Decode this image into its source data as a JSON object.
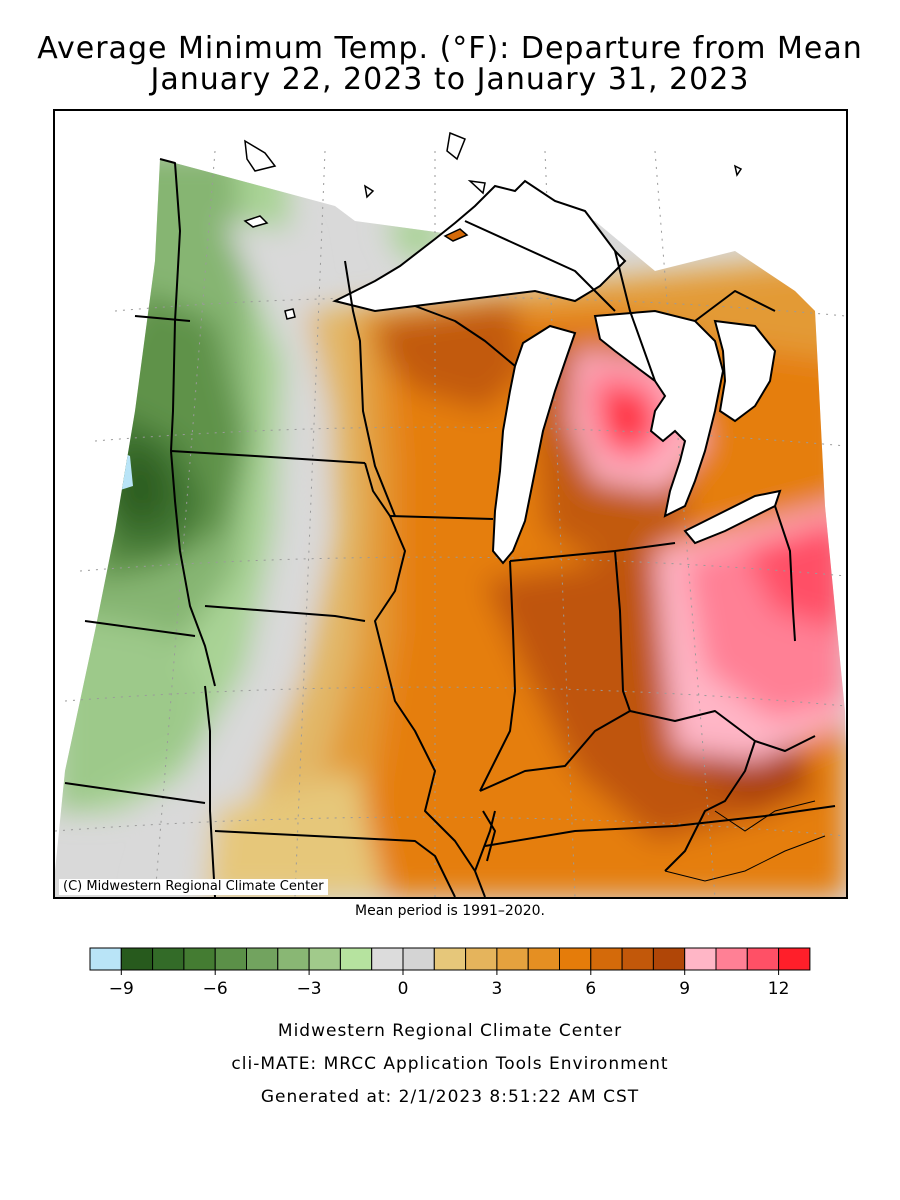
{
  "title": {
    "line1": "Average Minimum Temp. (°F): Departure from Mean",
    "line2": "January 22, 2023 to January 31, 2023"
  },
  "map": {
    "copyright": "(C) Midwestern Regional Climate Center",
    "region": "Midwest United States",
    "states": [
      "Minnesota",
      "Wisconsin",
      "Michigan",
      "Iowa",
      "Illinois",
      "Indiana",
      "Ohio",
      "Missouri",
      "Kentucky"
    ]
  },
  "mean_period": "Mean period is 1991–2020.",
  "legend": {
    "colors": [
      "#b9e4f7",
      "#275a1d",
      "#336b28",
      "#447c32",
      "#5b9048",
      "#72a35f",
      "#89b774",
      "#a1ca8b",
      "#b6e39f",
      "#dcdcdc",
      "#d4d4d4",
      "#e6c77a",
      "#e5b45c",
      "#e5a23e",
      "#e58f22",
      "#e57c0a",
      "#d46a0a",
      "#c2580a",
      "#b04607",
      "#ffb6c6",
      "#ff8095",
      "#ff5066",
      "#ff1f2a"
    ],
    "tick_labels": [
      "-9",
      "-6",
      "-3",
      "0",
      "3",
      "6",
      "9",
      "12"
    ]
  },
  "footer": {
    "line1": "Midwestern Regional Climate Center",
    "line2": "cli-MATE: MRCC Application Tools Environment",
    "line3": "Generated at: 2/1/2023 8:51:22 AM CST"
  }
}
